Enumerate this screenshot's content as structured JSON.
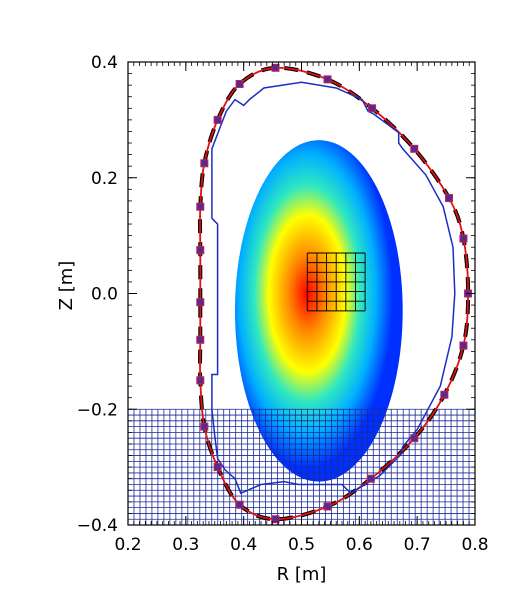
{
  "chart_data": {
    "type": "scatter",
    "xlabel": "R [m]",
    "ylabel": "Z [m]",
    "xlim": [
      0.2,
      0.8
    ],
    "ylim": [
      -0.4,
      0.4
    ],
    "x_ticks": [
      "0.2",
      "0.3",
      "0.4",
      "0.5",
      "0.6",
      "0.7",
      "0.8"
    ],
    "y_ticks": [
      "0.4",
      "0.2",
      "0.0",
      "−0.2",
      "−0.4"
    ],
    "y_tick_values": [
      0.4,
      0.2,
      0.0,
      -0.2,
      -0.4
    ],
    "grid": false,
    "colors": {
      "red_boundary": "#e01010",
      "dashed_boundary": "#000000",
      "blue_wall": "#1a2fc0",
      "markers": "#5a2a8a",
      "marker_edge": "#c02060",
      "coil_grid": "#1a2a9a",
      "mesh": "#000000"
    },
    "plasma": {
      "center": [
        0.53,
        -0.03
      ],
      "semi_axis_r": 0.145,
      "semi_axis_z": 0.295,
      "peak": [
        0.51,
        0.0
      ],
      "colormap": [
        "#ff0000",
        "#ff8a00",
        "#ffff00",
        "#30e8c0",
        "#00b0ff",
        "#0030ff"
      ]
    },
    "lower_coil_region": {
      "r_range": [
        0.2,
        0.8
      ],
      "z_range": [
        -0.4,
        -0.2
      ],
      "n_cols": 58,
      "n_rows": 20
    },
    "sensor_mesh": {
      "r_range": [
        0.51,
        0.61
      ],
      "z_range": [
        -0.03,
        0.07
      ],
      "n_cols": 6,
      "n_rows": 6
    },
    "boundary_points": [
      {
        "r": 0.325,
        "z": -0.015
      },
      {
        "r": 0.325,
        "z": 0.075
      },
      {
        "r": 0.325,
        "z": 0.15
      },
      {
        "r": 0.332,
        "z": 0.225
      },
      {
        "r": 0.355,
        "z": 0.3
      },
      {
        "r": 0.393,
        "z": 0.362
      },
      {
        "r": 0.455,
        "z": 0.39
      },
      {
        "r": 0.545,
        "z": 0.37
      },
      {
        "r": 0.622,
        "z": 0.32
      },
      {
        "r": 0.695,
        "z": 0.25
      },
      {
        "r": 0.755,
        "z": 0.165
      },
      {
        "r": 0.78,
        "z": 0.095
      },
      {
        "r": 0.788,
        "z": 0.0
      },
      {
        "r": 0.78,
        "z": -0.09
      },
      {
        "r": 0.747,
        "z": -0.175
      },
      {
        "r": 0.695,
        "z": -0.25
      },
      {
        "r": 0.62,
        "z": -0.32
      },
      {
        "r": 0.545,
        "z": -0.368
      },
      {
        "r": 0.455,
        "z": -0.39
      },
      {
        "r": 0.393,
        "z": -0.365
      },
      {
        "r": 0.355,
        "z": -0.3
      },
      {
        "r": 0.332,
        "z": -0.23
      },
      {
        "r": 0.325,
        "z": -0.15
      },
      {
        "r": 0.325,
        "z": -0.08
      }
    ],
    "blue_wall": [
      [
        0.345,
        0.13
      ],
      [
        0.345,
        0.25
      ],
      [
        0.37,
        0.315
      ],
      [
        0.385,
        0.335
      ],
      [
        0.4,
        0.325
      ],
      [
        0.41,
        0.335
      ],
      [
        0.435,
        0.355
      ],
      [
        0.5,
        0.365
      ],
      [
        0.56,
        0.355
      ],
      [
        0.605,
        0.335
      ],
      [
        0.615,
        0.315
      ],
      [
        0.625,
        0.31
      ],
      [
        0.668,
        0.278
      ],
      [
        0.668,
        0.26
      ],
      [
        0.675,
        0.25
      ],
      [
        0.715,
        0.205
      ],
      [
        0.745,
        0.15
      ],
      [
        0.762,
        0.08
      ],
      [
        0.765,
        0.0
      ],
      [
        0.76,
        -0.075
      ],
      [
        0.74,
        -0.16
      ],
      [
        0.7,
        -0.235
      ],
      [
        0.675,
        -0.265
      ],
      [
        0.67,
        -0.28
      ],
      [
        0.635,
        -0.315
      ],
      [
        0.585,
        -0.345
      ],
      [
        0.57,
        -0.33
      ],
      [
        0.535,
        -0.33
      ],
      [
        0.495,
        -0.33
      ],
      [
        0.47,
        -0.325
      ],
      [
        0.43,
        -0.33
      ],
      [
        0.395,
        -0.345
      ],
      [
        0.385,
        -0.32
      ],
      [
        0.368,
        -0.305
      ],
      [
        0.355,
        -0.285
      ],
      [
        0.35,
        -0.245
      ],
      [
        0.345,
        -0.2
      ],
      [
        0.345,
        -0.14
      ],
      [
        0.355,
        -0.14
      ],
      [
        0.355,
        0.12
      ]
    ]
  }
}
